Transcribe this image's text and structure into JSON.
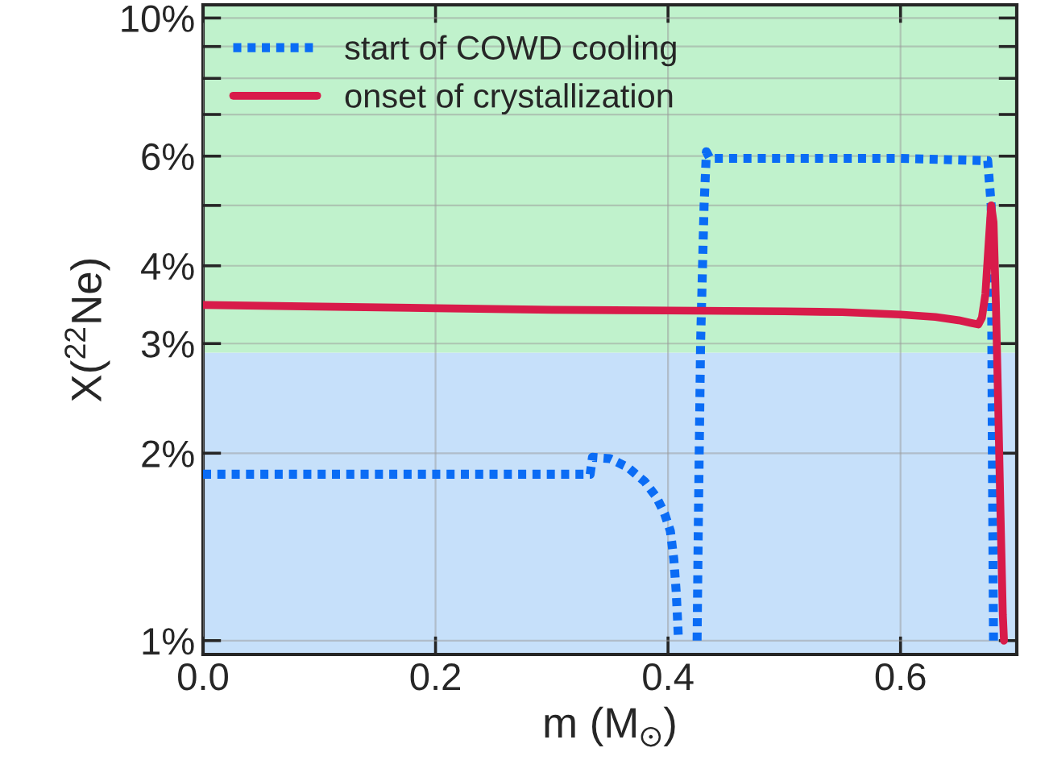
{
  "chart_data": {
    "type": "line",
    "xlabel": "m (M$_{⊙}$)",
    "ylabel": "X($^{22}$Ne)",
    "log": "y",
    "grid": true,
    "legend": "top left",
    "xlim": [
      0.0,
      0.7
    ],
    "xticks": [
      {
        "value": 0.0,
        "label": "0.0"
      },
      0.2,
      0.4,
      0.6
    ],
    "ylim": [
      0.95,
      10.5
    ],
    "yticks": [
      {
        "value": 1,
        "label": "1%"
      },
      {
        "value": 2,
        "label": "2%"
      },
      {
        "value": 3,
        "label": "3%"
      },
      {
        "value": 4,
        "label": "4%"
      },
      {
        "value": 5,
        "label": null
      },
      {
        "value": 6,
        "label": "6%"
      },
      {
        "value": 7,
        "label": null
      },
      {
        "value": 8,
        "label": null
      },
      {
        "value": 9,
        "label": null
      },
      {
        "value": 10,
        "label": "10%"
      }
    ],
    "bands": [
      {
        "axis": "y",
        "from": 0.95,
        "to": 2.9,
        "color": "#c6e0fa"
      },
      {
        "axis": "y",
        "from": 2.9,
        "to": 10.5,
        "color": "#c0f2cc"
      }
    ],
    "series": [
      {
        "name": "start of COWD cooling",
        "color": "#0a6cf5",
        "line_style": "dotted",
        "x": [
          0.0,
          0.333,
          0.335,
          0.35,
          0.365,
          0.38,
          0.39,
          0.397,
          0.402,
          0.405,
          0.407,
          0.408,
          0.409,
          0.41,
          0.417,
          0.425,
          0.426,
          0.428,
          0.431,
          0.433,
          0.436,
          0.5,
          0.6,
          0.675,
          0.678,
          0.679,
          0.68
        ],
        "values": [
          1.85,
          1.85,
          1.97,
          1.96,
          1.9,
          1.8,
          1.7,
          1.6,
          1.5,
          1.35,
          1.2,
          1.1,
          1.0,
          null,
          null,
          1.0,
          1.5,
          3.0,
          5.0,
          6.1,
          5.95,
          5.95,
          5.95,
          5.9,
          5.0,
          2.0,
          1.0
        ]
      },
      {
        "name": "onset of crystallization",
        "color": "#d81b4a",
        "line_style": "solid",
        "x": [
          0.0,
          0.1,
          0.2,
          0.3,
          0.4,
          0.5,
          0.55,
          0.6,
          0.63,
          0.65,
          0.66,
          0.667,
          0.67,
          0.673,
          0.676,
          0.678,
          0.68,
          0.682,
          0.684,
          0.686,
          0.688,
          0.689
        ],
        "values": [
          3.46,
          3.44,
          3.42,
          3.4,
          3.39,
          3.38,
          3.37,
          3.34,
          3.31,
          3.27,
          3.24,
          3.22,
          3.3,
          3.6,
          4.4,
          5.0,
          4.7,
          3.5,
          2.4,
          1.6,
          1.1,
          1.0
        ]
      }
    ]
  }
}
